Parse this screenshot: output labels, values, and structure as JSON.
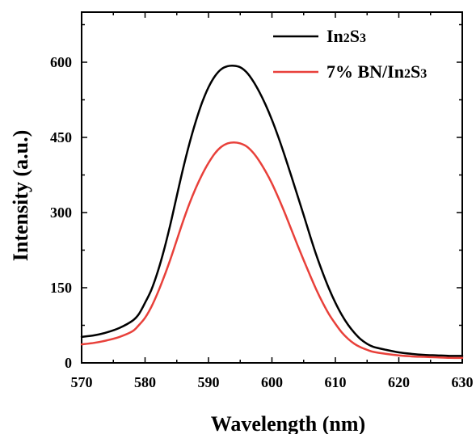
{
  "chart_data": {
    "type": "line",
    "title": "",
    "xlabel": "Wavelength (nm)",
    "ylabel": "Intensity (a.u.)",
    "xlim": [
      570,
      630
    ],
    "ylim": [
      0,
      700
    ],
    "xticks": [
      570,
      580,
      590,
      600,
      610,
      620,
      630
    ],
    "xtick_labels": [
      "570",
      "580",
      "590",
      "600",
      "610",
      "620",
      "630"
    ],
    "yticks": [
      0,
      150,
      300,
      450,
      600
    ],
    "ytick_labels": [
      "0",
      "150",
      "300",
      "450",
      "600"
    ],
    "grid": false,
    "legend_position": "top-right",
    "series": [
      {
        "name": "In2S3",
        "color": "#000000",
        "x": [
          570,
          572,
          574,
          576,
          578,
          579,
          580,
          581,
          582,
          583,
          584,
          585,
          586,
          587,
          588,
          589,
          590,
          591,
          592,
          593,
          594,
          595,
          596,
          597,
          598,
          599,
          600,
          601,
          602,
          603,
          604,
          605,
          606,
          607,
          608,
          609,
          610,
          611,
          612,
          613,
          614,
          615,
          616,
          618,
          620,
          622,
          624,
          626,
          628,
          630
        ],
        "y": [
          52,
          55,
          61,
          70,
          84,
          97,
          120,
          146,
          182,
          226,
          277,
          333,
          388,
          438,
          482,
          520,
          550,
          572,
          586,
          592,
          593,
          590,
          580,
          563,
          541,
          515,
          485,
          451,
          414,
          375,
          335,
          295,
          254,
          215,
          180,
          148,
          120,
          96,
          76,
          60,
          47,
          38,
          32,
          26,
          21,
          18,
          16,
          15,
          14,
          14
        ]
      },
      {
        "name": "7% BN/In2S3",
        "color": "#e8403a",
        "x": [
          570,
          572,
          574,
          576,
          578,
          579,
          580,
          581,
          582,
          583,
          584,
          585,
          586,
          587,
          588,
          589,
          590,
          591,
          592,
          593,
          594,
          595,
          596,
          597,
          598,
          599,
          600,
          601,
          602,
          603,
          604,
          605,
          606,
          607,
          608,
          609,
          610,
          611,
          612,
          613,
          614,
          615,
          616,
          618,
          620,
          622,
          624,
          626,
          628,
          630
        ],
        "y": [
          37,
          40,
          45,
          52,
          63,
          75,
          90,
          112,
          140,
          172,
          207,
          245,
          283,
          318,
          349,
          376,
          399,
          418,
          431,
          438,
          440,
          438,
          432,
          420,
          403,
          382,
          358,
          330,
          300,
          268,
          236,
          205,
          175,
          146,
          120,
          97,
          78,
          61,
          48,
          38,
          31,
          26,
          22,
          18,
          15,
          13,
          12,
          11,
          10,
          10
        ]
      }
    ]
  }
}
